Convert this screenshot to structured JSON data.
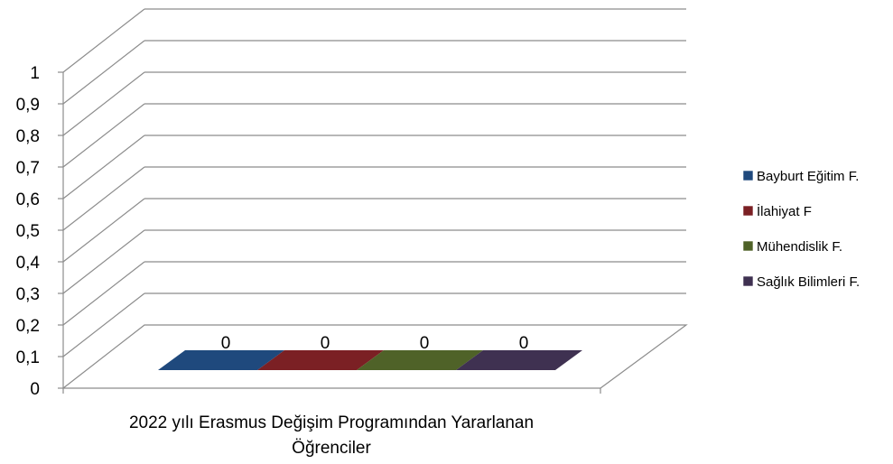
{
  "chart_data": {
    "type": "bar",
    "style": "3d-clustered-column",
    "categories": [
      "2022 yılı Erasmus Değişim Programından Yararlanan Öğrenciler"
    ],
    "category_lines": [
      "2022 yılı Erasmus Değişim Programından Yararlanan",
      "Öğrenciler"
    ],
    "y_ticks": [
      "0",
      "0,1",
      "0,2",
      "0,3",
      "0,4",
      "0,5",
      "0,6",
      "0,7",
      "0,8",
      "0,9",
      "1"
    ],
    "ylim": [
      0,
      1
    ],
    "grid": true,
    "legend_position": "right",
    "series": [
      {
        "name": "Bayburt Eğitim F.",
        "values": [
          0
        ],
        "label": "0",
        "color": "#1f497d"
      },
      {
        "name": "İlahiyat F",
        "values": [
          0
        ],
        "label": "0",
        "color": "#7b2024"
      },
      {
        "name": "Mühendislik F.",
        "values": [
          0
        ],
        "label": "0",
        "color": "#4f6228"
      },
      {
        "name": "Sağlık Bilimleri F.",
        "values": [
          0
        ],
        "label": "0",
        "color": "#3f3151"
      }
    ]
  }
}
